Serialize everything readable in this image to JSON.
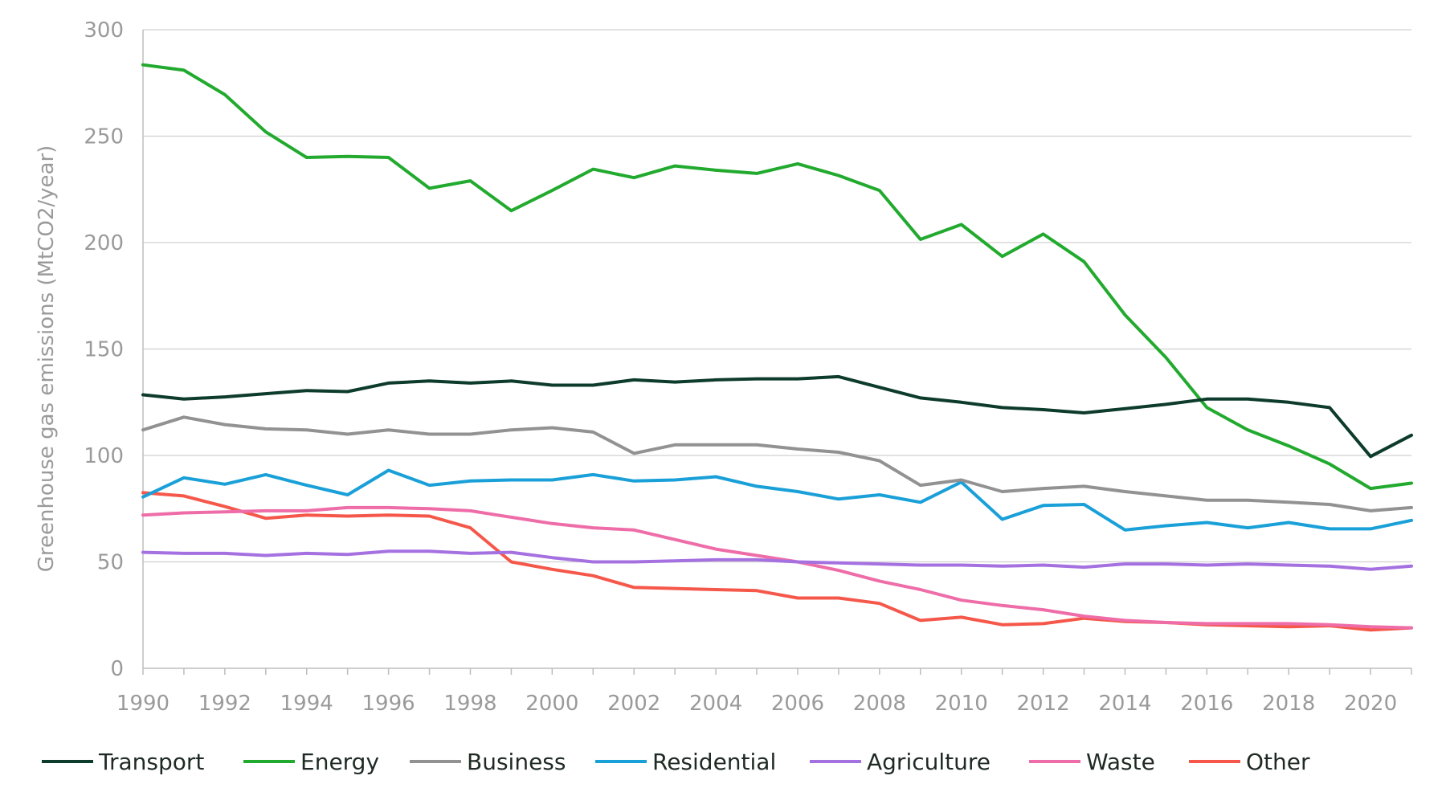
{
  "chart_data": {
    "type": "line",
    "title": "",
    "xlabel": "",
    "ylabel": "Greenhouse gas emissions (MtCO2/year)",
    "xlim": [
      1990,
      2021
    ],
    "ylim": [
      0,
      300
    ],
    "y_ticks": [
      0,
      50,
      100,
      150,
      200,
      250,
      300
    ],
    "x_ticks": [
      1990,
      1992,
      1994,
      1996,
      1998,
      2000,
      2002,
      2004,
      2006,
      2008,
      2010,
      2012,
      2014,
      2016,
      2018,
      2020
    ],
    "grid": "horizontal",
    "legend_position": "bottom",
    "x": [
      1990,
      1991,
      1992,
      1993,
      1994,
      1995,
      1996,
      1997,
      1998,
      1999,
      2000,
      2001,
      2002,
      2003,
      2004,
      2005,
      2006,
      2007,
      2008,
      2009,
      2010,
      2011,
      2012,
      2013,
      2014,
      2015,
      2016,
      2017,
      2018,
      2019,
      2020,
      2021
    ],
    "series": [
      {
        "name": "Transport",
        "color": "#0d3b2c",
        "values": [
          128.5,
          126.5,
          127.5,
          129,
          130.5,
          130,
          134,
          135,
          134,
          135,
          133,
          133,
          135.5,
          134.5,
          135.5,
          136,
          136,
          137,
          132,
          127,
          125,
          122.5,
          121.5,
          120,
          122,
          124,
          126.5,
          126.5,
          125,
          122.5,
          99.5,
          109.5
        ]
      },
      {
        "name": "Energy",
        "color": "#22aa2e",
        "values": [
          283.5,
          281,
          269.5,
          252,
          240,
          240.5,
          240,
          225.5,
          229,
          215,
          224.5,
          234.5,
          230.5,
          236,
          234,
          232.5,
          237,
          231.5,
          224.5,
          201.5,
          208.5,
          193.5,
          204,
          191,
          166,
          146,
          122.5,
          112,
          104.5,
          96,
          84.5,
          87
        ]
      },
      {
        "name": "Business",
        "color": "#929292",
        "values": [
          112,
          118,
          114.5,
          112.5,
          112,
          110,
          112,
          110,
          110,
          112,
          113,
          111,
          101,
          105,
          105,
          105,
          103,
          101.5,
          97.5,
          86,
          88.5,
          83,
          84.5,
          85.5,
          83,
          81,
          79,
          79,
          78,
          77,
          74,
          75.5
        ]
      },
      {
        "name": "Residential",
        "color": "#1aa0d8",
        "values": [
          80.5,
          89.5,
          86.5,
          91,
          86,
          81.5,
          93,
          86,
          88,
          88.5,
          88.5,
          91,
          88,
          88.5,
          90,
          85.5,
          83,
          79.5,
          81.5,
          78,
          87.5,
          70,
          76.5,
          77,
          65,
          67,
          68.5,
          66,
          68.5,
          65.5,
          65.5,
          69.5
        ]
      },
      {
        "name": "Agriculture",
        "color": "#a571e0",
        "values": [
          54.5,
          54,
          54,
          53,
          54,
          53.5,
          55,
          55,
          54,
          54.5,
          52,
          50,
          50,
          50.5,
          51,
          51,
          50,
          49.5,
          49,
          48.5,
          48.5,
          48,
          48.5,
          47.5,
          49,
          49,
          48.5,
          49,
          48.5,
          48,
          46.5,
          48
        ]
      },
      {
        "name": "Waste",
        "color": "#ee6da8",
        "values": [
          72,
          73,
          73.5,
          74,
          74,
          75.5,
          75.5,
          75,
          74,
          71,
          68,
          66,
          65,
          60.5,
          56,
          53,
          50,
          46,
          41,
          37,
          32,
          29.5,
          27.5,
          24.5,
          22.5,
          21.5,
          21,
          21,
          21,
          20.5,
          19.5,
          19
        ]
      },
      {
        "name": "Other",
        "color": "#f5584a",
        "values": [
          82.5,
          81,
          76,
          70.5,
          72,
          71.5,
          72,
          71.5,
          66,
          50,
          46.5,
          43.5,
          38,
          37.5,
          37,
          36.5,
          33,
          33,
          30.5,
          22.5,
          24,
          20.5,
          21,
          23.5,
          22,
          21.5,
          20.5,
          20,
          19.5,
          20,
          18,
          19
        ]
      }
    ]
  }
}
